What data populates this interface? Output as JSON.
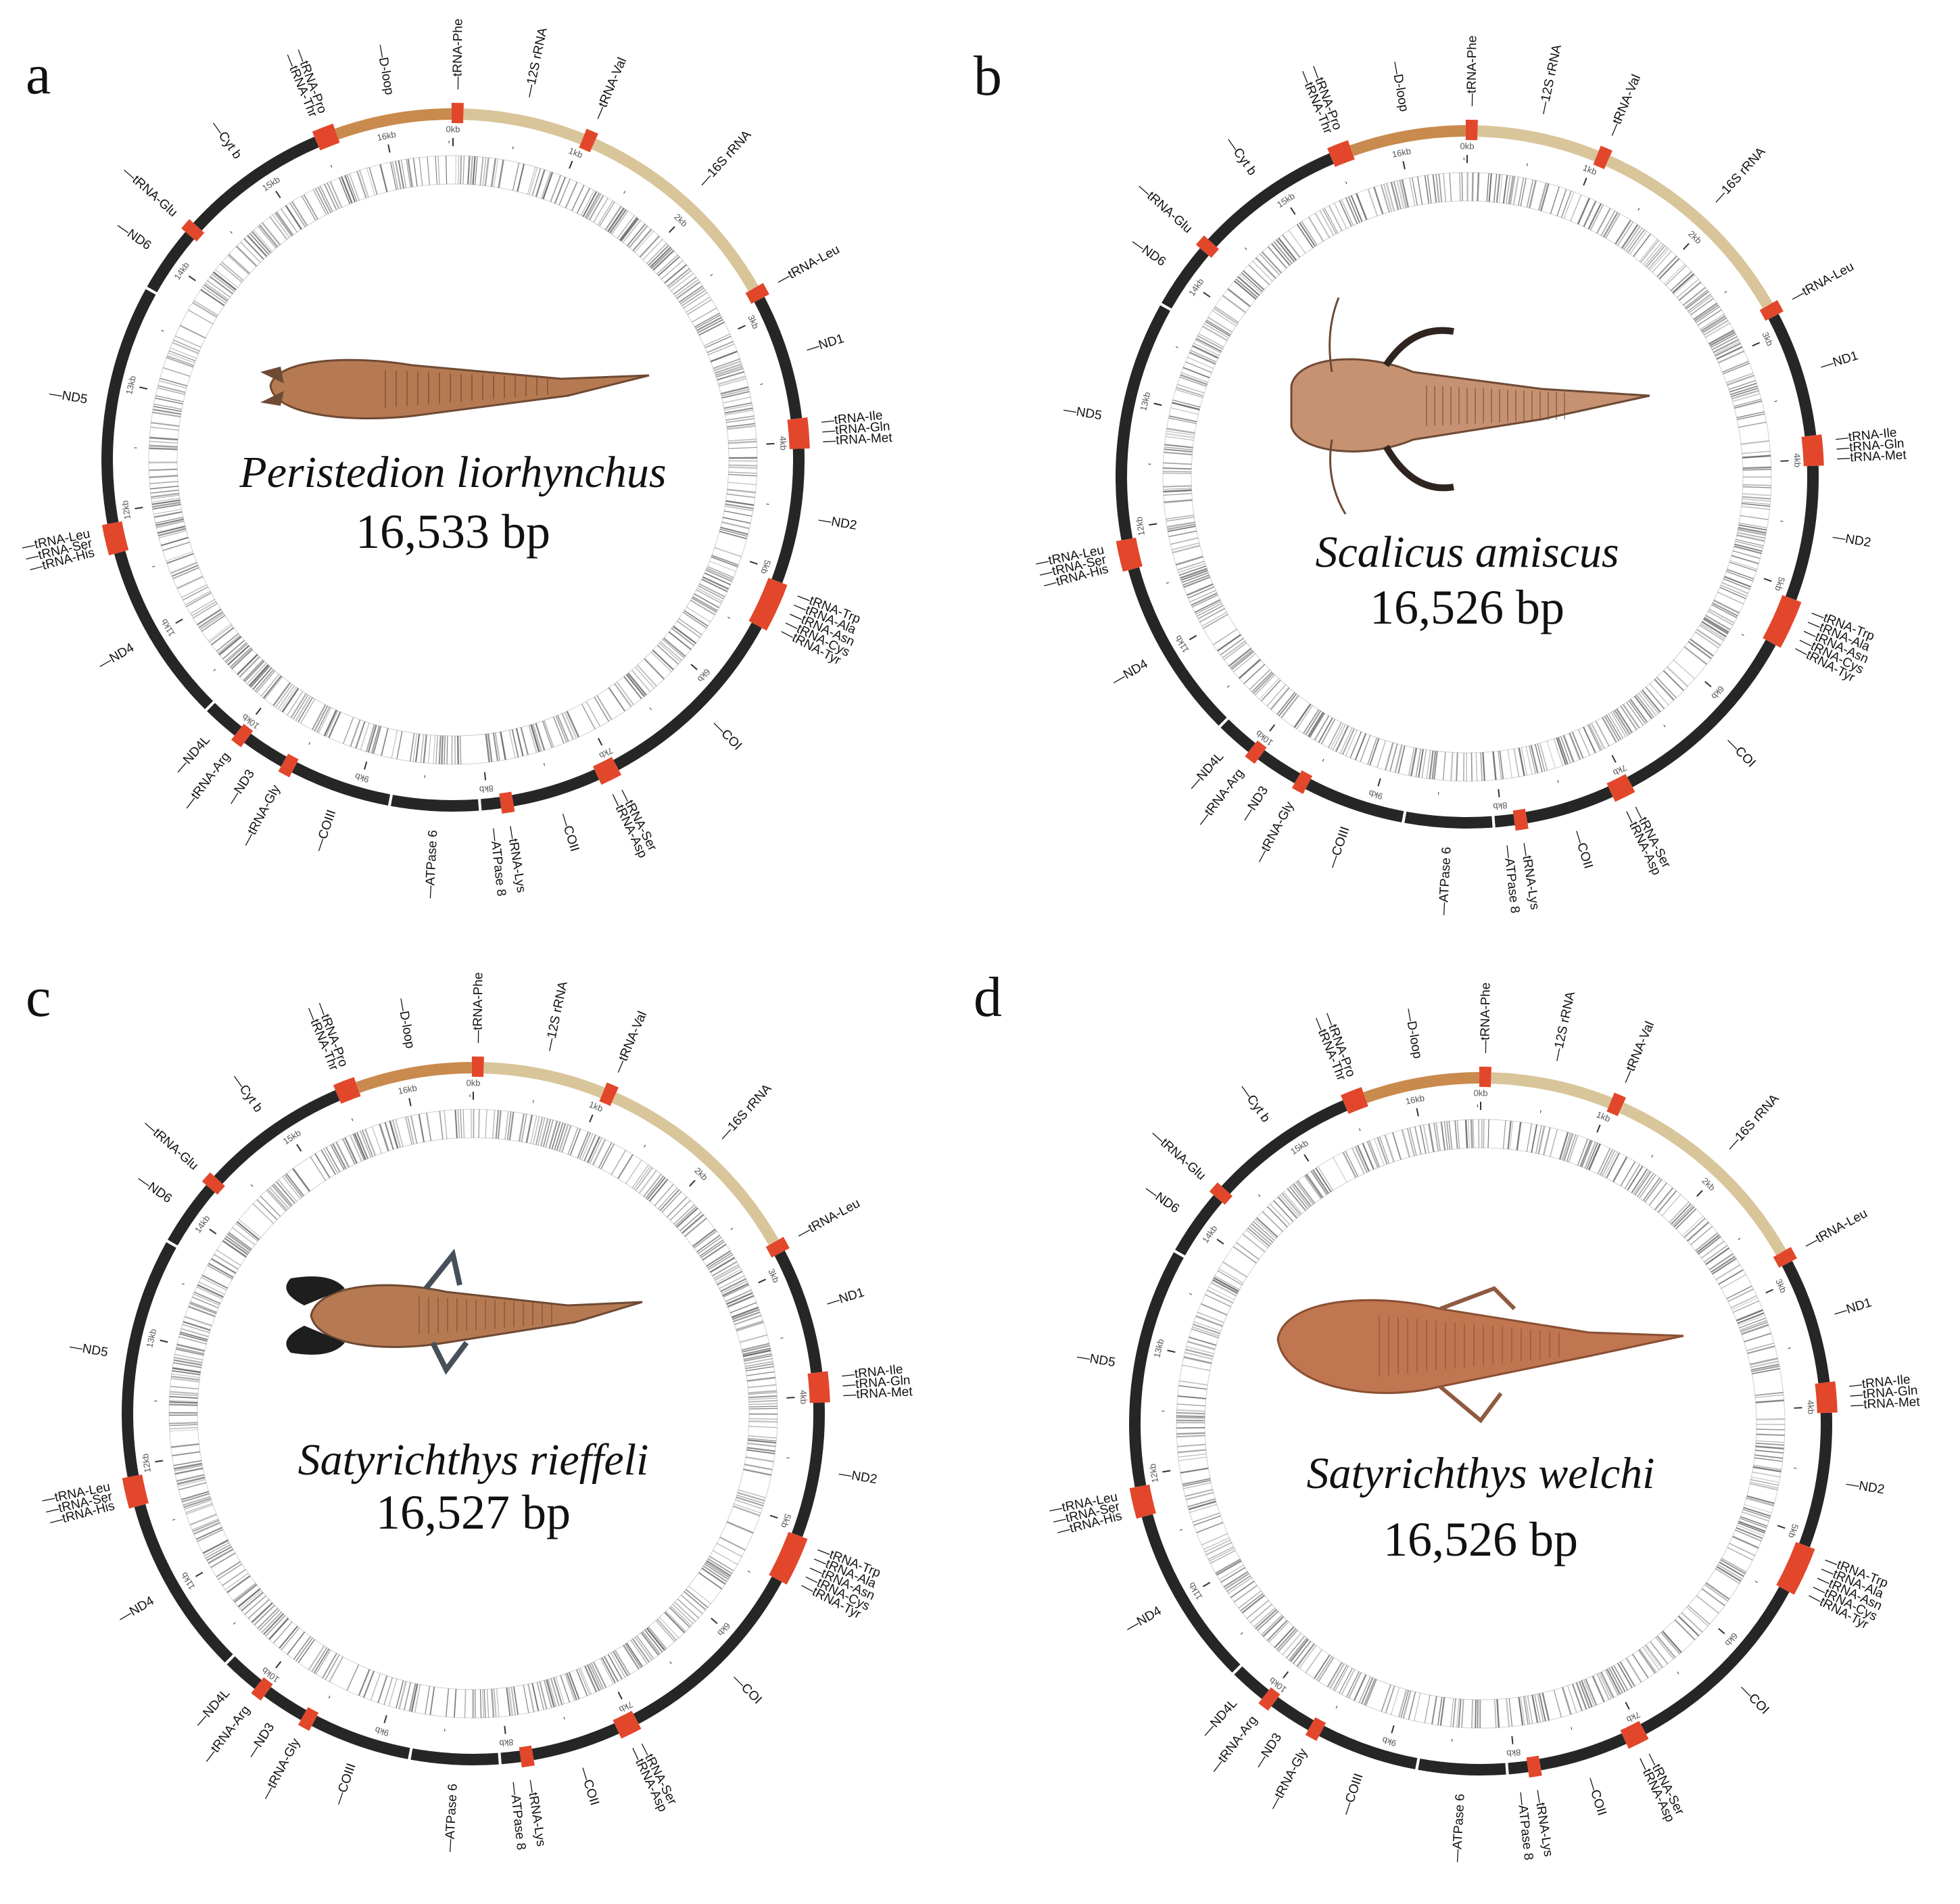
{
  "colors": {
    "protein": "#262626",
    "trna": "#e2472b",
    "rrna": "#d9c59a",
    "dloop": "#c98a4d",
    "barcode": "#6b6b6b",
    "fish_body": "#b67a52",
    "fish_dark": "#6f4a34"
  },
  "kb_labels": [
    "0kb",
    "1kb",
    "2kb",
    "3kb",
    "4kb",
    "5kb",
    "6kb",
    "7kb",
    "8kb",
    "9kb",
    "10kb",
    "11kb",
    "12kb",
    "13kb",
    "14kb",
    "15kb",
    "16kb"
  ],
  "genes": [
    {
      "label": "tRNA-Phe",
      "type": "trna",
      "start": 0,
      "end": 69
    },
    {
      "label": "12S rRNA",
      "type": "rrna",
      "start": 69,
      "end": 1020
    },
    {
      "label": "tRNA-Val",
      "type": "trna",
      "start": 1020,
      "end": 1092
    },
    {
      "label": "16S rRNA",
      "type": "rrna",
      "start": 1092,
      "end": 2780
    },
    {
      "label": "tRNA-Leu",
      "type": "trna",
      "start": 2780,
      "end": 2854
    },
    {
      "label": "ND1",
      "type": "protein",
      "start": 2854,
      "end": 3829
    },
    {
      "label": "tRNA-Ile",
      "type": "trna",
      "start": 3829,
      "end": 3899
    },
    {
      "label": "tRNA-Gln",
      "type": "trna",
      "start": 3899,
      "end": 3969
    },
    {
      "label": "tRNA-Met",
      "type": "trna",
      "start": 3969,
      "end": 4038
    },
    {
      "label": "ND2",
      "type": "protein",
      "start": 4038,
      "end": 5085
    },
    {
      "label": "tRNA-Trp",
      "type": "trna",
      "start": 5085,
      "end": 5157
    },
    {
      "label": "tRNA-Ala",
      "type": "trna",
      "start": 5157,
      "end": 5225
    },
    {
      "label": "tRNA-Asn",
      "type": "trna",
      "start": 5225,
      "end": 5298
    },
    {
      "label": "tRNA-Cys",
      "type": "trna",
      "start": 5298,
      "end": 5364
    },
    {
      "label": "tRNA-Tyr",
      "type": "trna",
      "start": 5364,
      "end": 5434
    },
    {
      "label": "COI",
      "type": "protein",
      "start": 5434,
      "end": 6985
    },
    {
      "label": "tRNA-Ser",
      "type": "trna",
      "start": 6985,
      "end": 7056
    },
    {
      "label": "tRNA-Asp",
      "type": "trna",
      "start": 7056,
      "end": 7128
    },
    {
      "label": "COII",
      "type": "protein",
      "start": 7128,
      "end": 7819
    },
    {
      "label": "tRNA-Lys",
      "type": "trna",
      "start": 7819,
      "end": 7894
    },
    {
      "label": "ATPase 8",
      "type": "protein",
      "start": 7894,
      "end": 8062
    },
    {
      "label": "ATPase 6",
      "type": "protein",
      "start": 8062,
      "end": 8745
    },
    {
      "label": "COIII",
      "type": "protein",
      "start": 8745,
      "end": 9530
    },
    {
      "label": "tRNA-Gly",
      "type": "trna",
      "start": 9530,
      "end": 9602
    },
    {
      "label": "ND3",
      "type": "protein",
      "start": 9602,
      "end": 9951
    },
    {
      "label": "tRNA-Arg",
      "type": "trna",
      "start": 9951,
      "end": 10020
    },
    {
      "label": "ND4L",
      "type": "protein",
      "start": 10020,
      "end": 10317
    },
    {
      "label": "ND4",
      "type": "protein",
      "start": 10317,
      "end": 11698
    },
    {
      "label": "tRNA-His",
      "type": "trna",
      "start": 11698,
      "end": 11767
    },
    {
      "label": "tRNA-Ser",
      "type": "trna",
      "start": 11767,
      "end": 11834
    },
    {
      "label": "tRNA-Leu",
      "type": "trna",
      "start": 11834,
      "end": 11907
    },
    {
      "label": "ND5",
      "type": "protein",
      "start": 11907,
      "end": 13745
    },
    {
      "label": "ND6",
      "type": "protein",
      "start": 13745,
      "end": 14267
    },
    {
      "label": "tRNA-Glu",
      "type": "trna",
      "start": 14267,
      "end": 14336
    },
    {
      "label": "Cyt b",
      "type": "protein",
      "start": 14336,
      "end": 15477
    },
    {
      "label": "tRNA-Thr",
      "type": "trna",
      "start": 15477,
      "end": 15550
    },
    {
      "label": "tRNA-Pro",
      "type": "trna",
      "start": 15550,
      "end": 15620
    },
    {
      "label": "D-loop",
      "type": "dloop",
      "start": 15620,
      "end": 16533
    }
  ],
  "panels": [
    {
      "letter": "a",
      "species": "Peristedion liorhynchus",
      "size_label": "16,533 bp",
      "genome_length": 16533
    },
    {
      "letter": "b",
      "species": "Scalicus amiscus",
      "size_label": "16,526 bp",
      "genome_length": 16526
    },
    {
      "letter": "c",
      "species": "Satyrichthys rieffeli",
      "size_label": "16,527 bp",
      "genome_length": 16527
    },
    {
      "letter": "d",
      "species": "Satyrichthys welchi",
      "size_label": "16,526 bp",
      "genome_length": 16526
    }
  ]
}
